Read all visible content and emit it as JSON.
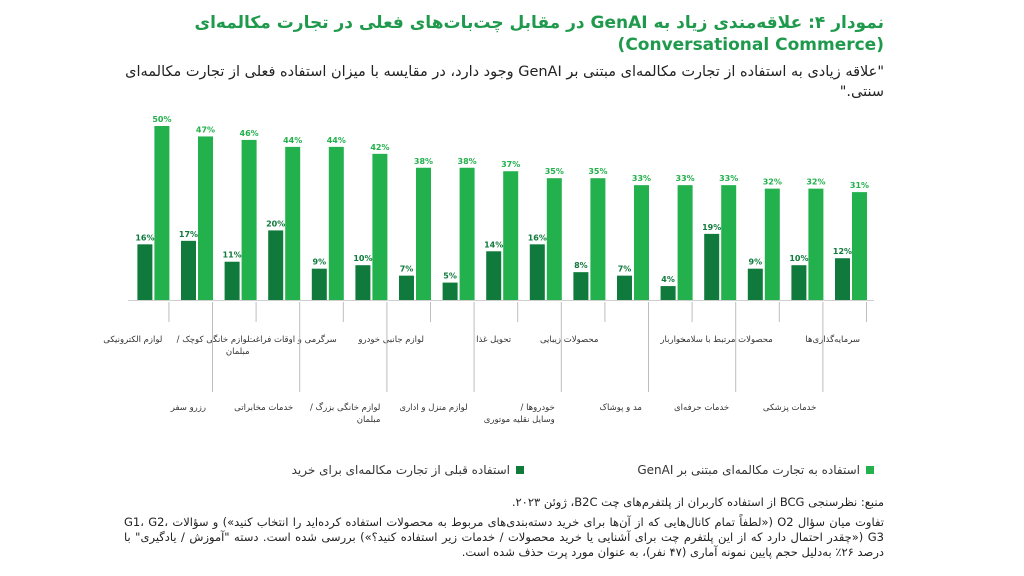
{
  "header": {
    "title": "نمودار ۴: علاقه‌مندی زیاد به GenAI در مقابل چت‌بات‌های فعلی در تجارت مکالمه‌ای (Conversational Commerce)",
    "subtitle": "\"علاقه زیادی به استفاده از تجارت مکالمه‌ای مبتنی بر GenAI وجود دارد، در مقایسه با میزان استفاده فعلی از تجارت مکالمه‌ای سنتی.\""
  },
  "chart_data": {
    "type": "bar",
    "categories": [
      "سرمایه‌گذاری‌ها",
      "خدمات پزشکی",
      "محصولات مرتبط با سلامت",
      "خدمات حرفه‌ای",
      "خواربار",
      "مد و پوشاک",
      "محصولات زیبایی",
      "خودروها / وسایل نقلیه موتوری",
      "تحویل غذا",
      "لوازم منزل و اداری",
      "لوازم جانبی خودرو",
      "لوازم خانگی بزرگ / مبلمان",
      "سرگرمی و اوقات فراغت",
      "خدمات مخابراتی",
      "لوازم خانگی کوچک / مبلمان",
      "رزرو سفر",
      "لوازم الکترونیکی"
    ],
    "series": [
      {
        "name": "استفاده به تجارت مکالمه‌ای مبتنی بر GenAI",
        "values": [
          31,
          32,
          32,
          33,
          33,
          33,
          35,
          35,
          37,
          38,
          38,
          42,
          44,
          44,
          46,
          47,
          50
        ],
        "labels": [
          "31%",
          "32%",
          "32%",
          "33%",
          "33%",
          "33%",
          "35%",
          "35%",
          "37%",
          "38%",
          "38%",
          "42%",
          "44%",
          "44%",
          "46%",
          "47%",
          "50%"
        ],
        "color": "#22b14c"
      },
      {
        "name": "استفاده قبلی از تجارت مکالمه‌ای برای خرید",
        "values": [
          12,
          10,
          9,
          19,
          4,
          7,
          8,
          16,
          14,
          5,
          7,
          10,
          9,
          20,
          11,
          17,
          16
        ],
        "labels": [
          "12%",
          "10%",
          "9%",
          "19%",
          "4%",
          "7%",
          "8%",
          "16%",
          "14%",
          "5%",
          "7%",
          "10%",
          "9%",
          "20%",
          "11%",
          "17%",
          "16%"
        ],
        "color": "#0f7a3c"
      }
    ],
    "ylim": [
      0,
      50
    ],
    "order": "right-to-left",
    "legend_placement": "bottom",
    "grid": false
  },
  "footer": {
    "source": "منبع: نظرسنجی BCG از استفاده کاربران از پلتفرم‌های چت B2C، ژوئن ۲۰۲۳.",
    "note": "تفاوت میان سؤال O2 («لطفاً تمام کانال‌هایی که از آن‌ها برای خرید دسته‌بندی‌های مربوط به محصولات استفاده کرده‌اید را انتخاب کنید») و سؤالات G1، G2، G3 («چقدر احتمال دارد که از این پلتفرم چت برای آشنایی یا خرید محصولات / خدمات زیر استفاده کنید؟») بررسی شده است. دسته \"آموزش / یادگیری\" با درصد ۲۶٪ به‌دلیل حجم پایین نمونه آماری (۴۷ نفر)، به عنوان مورد پرت حذف شده است."
  }
}
